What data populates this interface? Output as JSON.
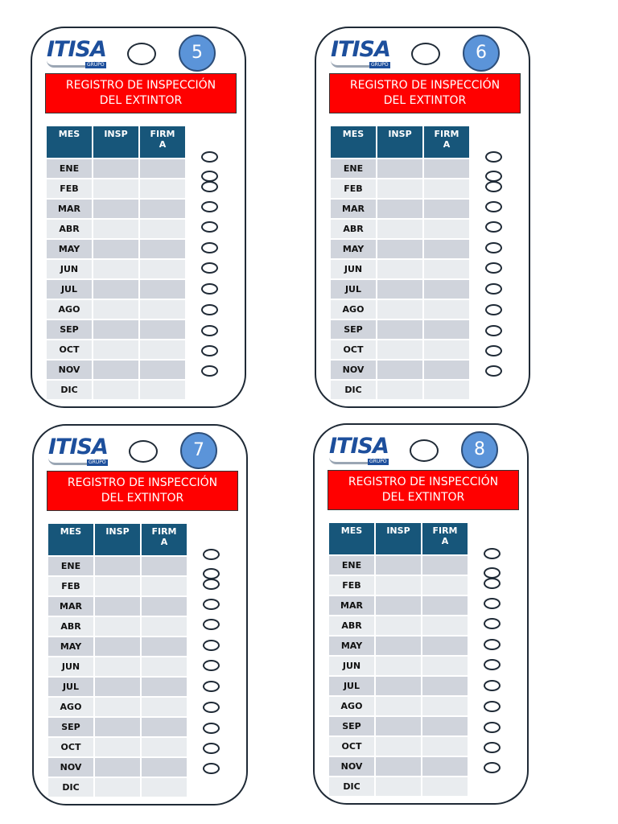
{
  "logo_text": "ITISA",
  "logo_sub": "GRUPO",
  "title_line1": "REGISTRO DE INSPECCIÓN",
  "title_line2": "DEL EXTINTOR",
  "headers": [
    "MES",
    "INSP",
    "FIRM\nA"
  ],
  "months": [
    "ENE",
    "FEB",
    "MAR",
    "ABR",
    "MAY",
    "JUN",
    "JUL",
    "AGO",
    "SEP",
    "OCT",
    "NOV",
    "DIC"
  ],
  "cards": [
    {
      "number": "5"
    },
    {
      "number": "6"
    },
    {
      "number": "7"
    },
    {
      "number": "8"
    }
  ],
  "colors": {
    "title_bg": "#ff0000",
    "header_bg": "#17567a",
    "badge_bg": "#5b94d9",
    "logo": "#1d4f9c"
  }
}
